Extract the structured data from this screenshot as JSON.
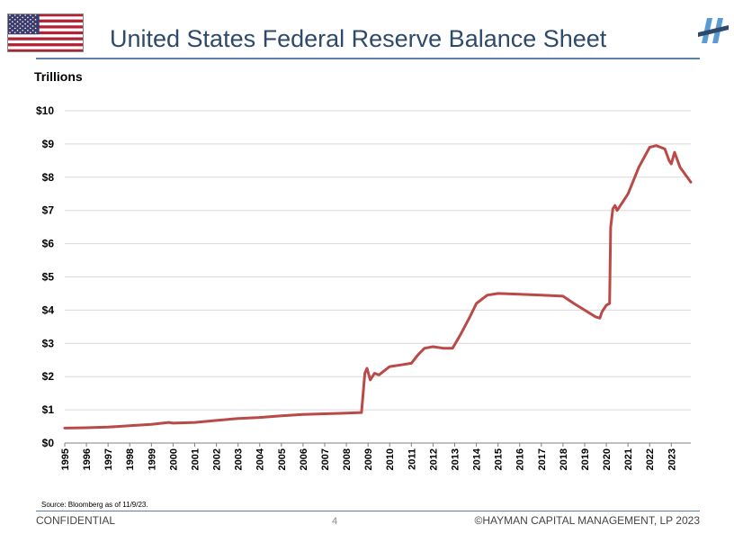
{
  "header": {
    "title": "United States Federal Reserve Balance Sheet",
    "flag_icon": "us-flag-icon",
    "logo_icon": "hayman-logo-icon"
  },
  "colors": {
    "title": "#2e4a6b",
    "rule": "#5b7fa6",
    "line": "#b94a48",
    "grid": "#d9d9d9"
  },
  "footer": {
    "source": "Source:  Bloomberg as of 11/9/23.",
    "confidential": "CONFIDENTIAL",
    "page_number": "4",
    "copyright": "©HAYMAN CAPITAL MANAGEMENT, LP 2023"
  },
  "chart_data": {
    "type": "line",
    "title": "United States Federal Reserve Balance Sheet",
    "ylabel": "Trillions",
    "xlabel": "",
    "xlim": [
      1995,
      2023.9
    ],
    "ylim": [
      0,
      10
    ],
    "grid": true,
    "legend": "none",
    "x_ticks": [
      "1995",
      "1996",
      "1997",
      "1998",
      "1999",
      "2000",
      "2001",
      "2002",
      "2003",
      "2004",
      "2005",
      "2006",
      "2007",
      "2008",
      "2009",
      "2010",
      "2011",
      "2012",
      "2013",
      "2014",
      "2015",
      "2016",
      "2017",
      "2018",
      "2019",
      "2020",
      "2021",
      "2022",
      "2023"
    ],
    "y_ticks": [
      "$0",
      "$1",
      "$2",
      "$3",
      "$4",
      "$5",
      "$6",
      "$7",
      "$8",
      "$9",
      "$10"
    ],
    "series": [
      {
        "x": [
          1995.0,
          1996.0,
          1997.0,
          1998.0,
          1999.0,
          1999.8,
          2000.0,
          2001.0,
          2002.0,
          2003.0,
          2004.0,
          2005.0,
          2006.0,
          2007.0,
          2008.0,
          2008.7,
          2008.85,
          2008.95,
          2009.1,
          2009.3,
          2009.5,
          2010.0,
          2010.5,
          2011.0,
          2011.3,
          2011.6,
          2012.0,
          2012.5,
          2012.9,
          2013.3,
          2013.7,
          2014.0,
          2014.5,
          2015.0,
          2016.0,
          2017.0,
          2018.0,
          2018.5,
          2019.0,
          2019.5,
          2019.7,
          2019.8,
          2020.0,
          2020.15,
          2020.2,
          2020.3,
          2020.4,
          2020.5,
          2021.0,
          2021.5,
          2022.0,
          2022.3,
          2022.7,
          2022.9,
          2023.0,
          2023.15,
          2023.4,
          2023.9
        ],
        "y": [
          0.45,
          0.46,
          0.48,
          0.52,
          0.56,
          0.62,
          0.6,
          0.62,
          0.68,
          0.74,
          0.77,
          0.82,
          0.86,
          0.88,
          0.9,
          0.92,
          2.1,
          2.25,
          1.9,
          2.1,
          2.05,
          2.3,
          2.35,
          2.4,
          2.65,
          2.85,
          2.9,
          2.85,
          2.85,
          3.3,
          3.8,
          4.2,
          4.45,
          4.5,
          4.48,
          4.45,
          4.42,
          4.2,
          4.0,
          3.8,
          3.76,
          3.95,
          4.15,
          4.2,
          6.5,
          7.05,
          7.15,
          7.0,
          7.5,
          8.3,
          8.9,
          8.95,
          8.85,
          8.5,
          8.4,
          8.75,
          8.3,
          7.85
        ]
      }
    ]
  }
}
